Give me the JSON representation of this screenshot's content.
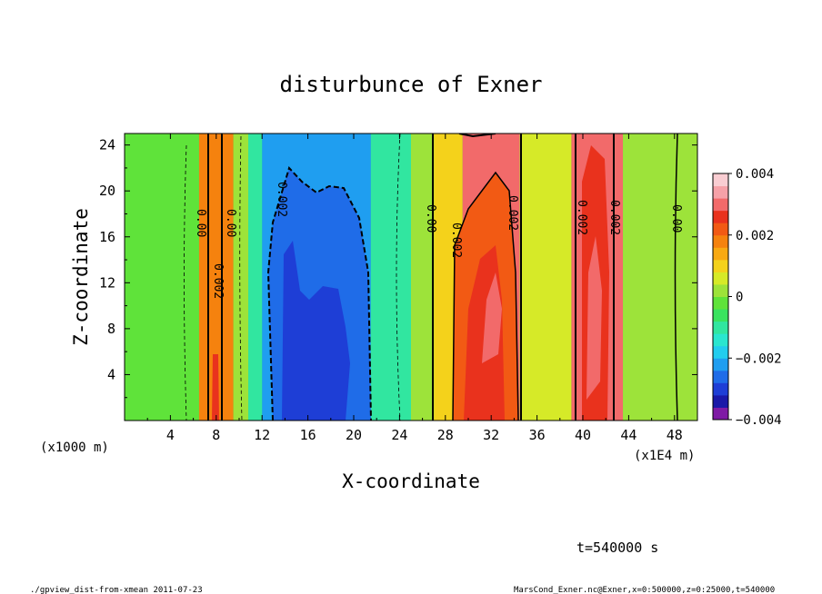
{
  "chart_data": {
    "type": "heatmap",
    "title": "disturbunce of Exner",
    "xlabel": "X-coordinate",
    "ylabel": "Z-coordinate",
    "x_unit_left": "(x1000 m)",
    "x_unit_right": "(x1E4 m)",
    "xlim": [
      0,
      50
    ],
    "ylim": [
      0,
      25
    ],
    "x_ticks": [
      "4",
      "8",
      "12",
      "16",
      "20",
      "24",
      "28",
      "32",
      "36",
      "40",
      "44",
      "48"
    ],
    "y_ticks": [
      "4",
      "8",
      "12",
      "16",
      "20",
      "24"
    ],
    "colorbar": {
      "range": [
        -0.004,
        0.004
      ],
      "tick_labels": [
        "0.004",
        "0.002",
        "0",
        "−0.002",
        "−0.004"
      ],
      "levels": [
        "#7f1aa5",
        "#1a18a8",
        "#1e3ed6",
        "#1f6ce8",
        "#1f9ef0",
        "#22cdee",
        "#2ae6cf",
        "#31e6a0",
        "#39e35f",
        "#5fe33a",
        "#9de33a",
        "#d6ea28",
        "#f4d21b",
        "#f8a912",
        "#f5820e",
        "#f25a14",
        "#e9321d",
        "#f26a6a",
        "#f6a1a8",
        "#f9cdd2"
      ]
    },
    "bands": [
      {
        "x0": 0,
        "x1": 6.5,
        "value": -0.0002
      },
      {
        "x0": 6.5,
        "x1": 8.0,
        "value": 0.0018
      },
      {
        "x0": 8.0,
        "x1": 9.5,
        "value": 0.0018
      },
      {
        "x0": 9.5,
        "x1": 10.8,
        "value": 0.0002
      },
      {
        "x0": 10.8,
        "x1": 12.0,
        "value": -0.001
      },
      {
        "x0": 12.0,
        "x1": 21.5,
        "value": -0.0022
      },
      {
        "x0": 21.5,
        "x1": 25.0,
        "value": -0.0012
      },
      {
        "x0": 25.0,
        "x1": 27.0,
        "value": 0.0002
      },
      {
        "x0": 27.0,
        "x1": 29.5,
        "value": 0.0012
      },
      {
        "x0": 29.5,
        "x1": 34.5,
        "value": 0.003
      },
      {
        "x0": 34.5,
        "x1": 39.0,
        "value": 0.0006
      },
      {
        "x0": 39.0,
        "x1": 43.5,
        "value": 0.003
      },
      {
        "x0": 43.5,
        "x1": 50.0,
        "value": 0.0003
      }
    ],
    "contour_labels": [
      "0.00",
      "0.00",
      "0.002",
      "0.002",
      "0.00",
      "0.002",
      "0.002",
      "0.002",
      "0.002",
      "0.00"
    ]
  },
  "time_label": "t=540000 s",
  "footer_left": "./gpview_dist-from-xmean  2011-07-23",
  "footer_right": "MarsCond_Exner.nc@Exner,x=0:500000,z=0:25000,t=540000"
}
